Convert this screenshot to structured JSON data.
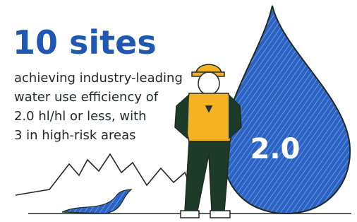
{
  "header": {
    "title": "10 sites"
  },
  "body": {
    "lines": [
      "achieving industry-leading",
      "water use efficiency of",
      "2.0 hl/hl or less, with",
      "3 in high-risk areas"
    ]
  },
  "drop": {
    "label": "2.0"
  }
}
